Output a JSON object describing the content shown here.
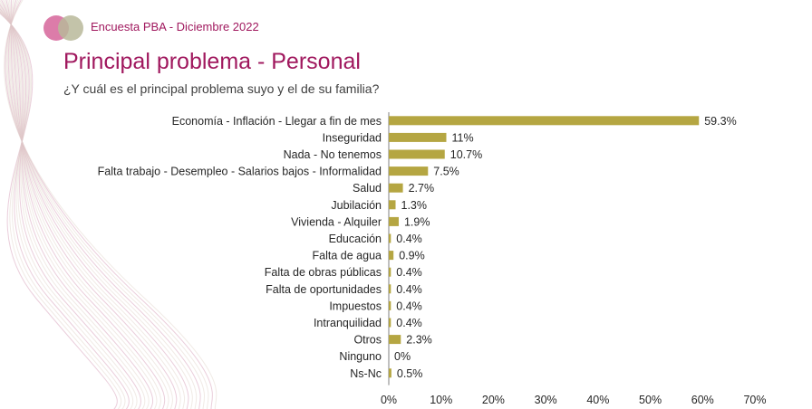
{
  "header": {
    "survey_label": "Encuesta PBA - Diciembre 2022"
  },
  "page": {
    "title": "Principal problema - Personal",
    "subtitle": "¿Y cuál es el principal problema suyo y el de su familia?"
  },
  "colors": {
    "bar": "#b5a642",
    "accent": "#a0185e",
    "logo_left": "#d86ea0",
    "logo_right": "#b9b99a",
    "text": "#262626",
    "axis": "#808080"
  },
  "chart_data": {
    "type": "bar",
    "orientation": "horizontal",
    "title": "",
    "categories": [
      "Economía - Inflación - Llegar a fin de mes",
      "Inseguridad",
      "Nada - No tenemos",
      "Falta trabajo - Desempleo - Salarios bajos - Informalidad",
      "Salud",
      "Jubilación",
      "Vivienda - Alquiler",
      "Educación",
      "Falta de agua",
      "Falta de obras públicas",
      "Falta de oportunidades",
      "Impuestos",
      "Intranquilidad",
      "Otros",
      "Ninguno",
      "Ns-Nc"
    ],
    "values": [
      59.3,
      11,
      10.7,
      7.5,
      2.7,
      1.3,
      1.9,
      0.4,
      0.9,
      0.4,
      0.4,
      0.4,
      0.4,
      2.3,
      0,
      0.5
    ],
    "data_labels": [
      "59.3%",
      "11%",
      "10.7%",
      "7.5%",
      "2.7%",
      "1.3%",
      "1.9%",
      "0.4%",
      "0.9%",
      "0.4%",
      "0.4%",
      "0.4%",
      "0.4%",
      "2.3%",
      "0%",
      "0.5%"
    ],
    "xlim": [
      0,
      70
    ],
    "xticks": [
      0,
      10,
      20,
      30,
      40,
      50,
      60,
      70
    ],
    "xtick_labels": [
      "0%",
      "10%",
      "20%",
      "30%",
      "40%",
      "50%",
      "60%",
      "70%"
    ],
    "xlabel": "",
    "ylabel": "",
    "grid": false
  }
}
